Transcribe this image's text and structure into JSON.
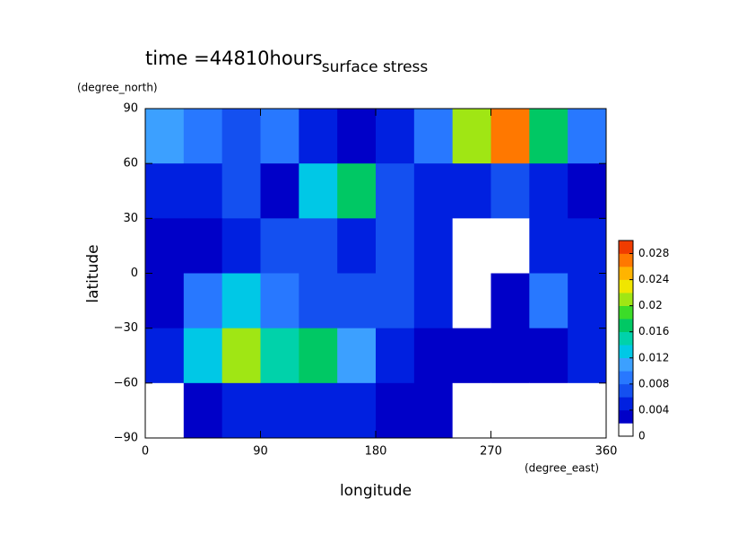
{
  "chart_data": {
    "type": "heatmap",
    "title": "time =44810hours",
    "subtitle": "surface stress",
    "y_unit": "(degree_north)",
    "x_unit": "(degree_east)",
    "y_label": "latitude",
    "x_label": "longitude",
    "xlim": [
      0,
      360
    ],
    "ylim": [
      -90,
      90
    ],
    "xticks": [
      0,
      90,
      180,
      270,
      360
    ],
    "yticks": [
      {
        "value": -90,
        "label": "−90"
      },
      {
        "value": -60,
        "label": "−60"
      },
      {
        "value": -30,
        "label": "−30"
      },
      0,
      30,
      60,
      90
    ],
    "x": [
      15,
      45,
      75,
      105,
      135,
      165,
      195,
      225,
      255,
      285,
      315,
      345
    ],
    "y": [
      75,
      45,
      15,
      -15,
      -45,
      -75
    ],
    "z": [
      [
        0.01,
        0.008,
        0.006,
        0.008,
        0.004,
        0.003,
        0.005,
        0.008,
        0.02,
        0.026,
        0.016,
        0.008
      ],
      [
        0.005,
        0.004,
        0.006,
        0.003,
        0.012,
        0.016,
        0.006,
        0.004,
        0.005,
        0.006,
        0.004,
        0.003
      ],
      [
        0.002,
        0.003,
        0.004,
        0.006,
        0.006,
        0.005,
        0.006,
        0.004,
        0.0,
        0.001,
        0.004,
        0.004
      ],
      [
        0.003,
        0.008,
        0.012,
        0.008,
        0.006,
        0.006,
        0.006,
        0.004,
        0.0,
        0.003,
        0.008,
        0.005
      ],
      [
        0.004,
        0.012,
        0.02,
        0.014,
        0.016,
        0.01,
        0.004,
        0.003,
        0.002,
        0.003,
        0.003,
        0.004
      ],
      [
        0.0,
        0.002,
        0.004,
        0.004,
        0.004,
        0.004,
        0.003,
        0.002,
        0.0,
        0.0,
        0.0,
        0.0
      ]
    ],
    "clim": [
      0,
      0.03
    ],
    "level_step": 0.002,
    "colors": [
      "#ffffff",
      "#0000c8",
      "#0020e0",
      "#1450f0",
      "#2878ff",
      "#3ca0ff",
      "#00c8e6",
      "#00d2aa",
      "#00c864",
      "#3cdc28",
      "#a0e614",
      "#f0e600",
      "#ffb400",
      "#ff7800",
      "#f03c00"
    ],
    "cticks": [
      0,
      0.004,
      0.008,
      0.012,
      0.016,
      0.02,
      0.024,
      0.028
    ]
  }
}
